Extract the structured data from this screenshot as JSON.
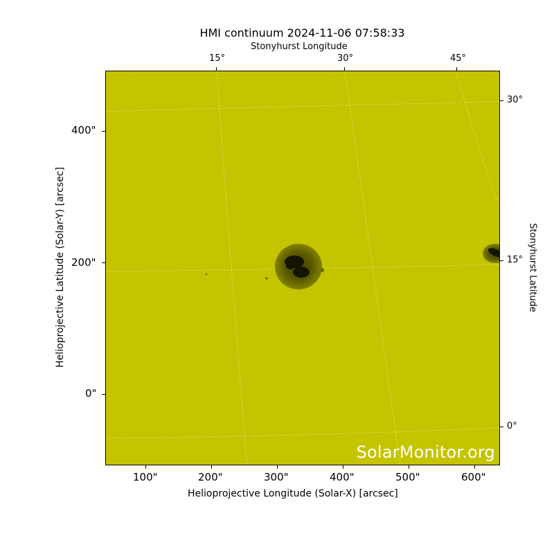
{
  "title": "HMI continuum 2024-11-06 07:58:33",
  "top_axis_label": "Stonyhurst Longitude",
  "right_axis_label": "Stonyhurst Latitude",
  "bottom_axis_label": "Helioprojective Longitude (Solar-X) [arcsec]",
  "left_axis_label": "Helioprojective Latitude (Solar-Y) [arcsec]",
  "bottom_ticks": [
    "100\"",
    "200\"",
    "300\"",
    "400\"",
    "500\"",
    "600\""
  ],
  "left_ticks": [
    "400\"",
    "200\"",
    "0\""
  ],
  "top_ticks": [
    "15°",
    "30°",
    "45°"
  ],
  "right_ticks": [
    "30°",
    "15°",
    "0°"
  ],
  "watermark": "SolarMonitor.org",
  "colors": {
    "background": "#cccc00",
    "grid": "#e6e680",
    "spot": "#141400"
  }
}
